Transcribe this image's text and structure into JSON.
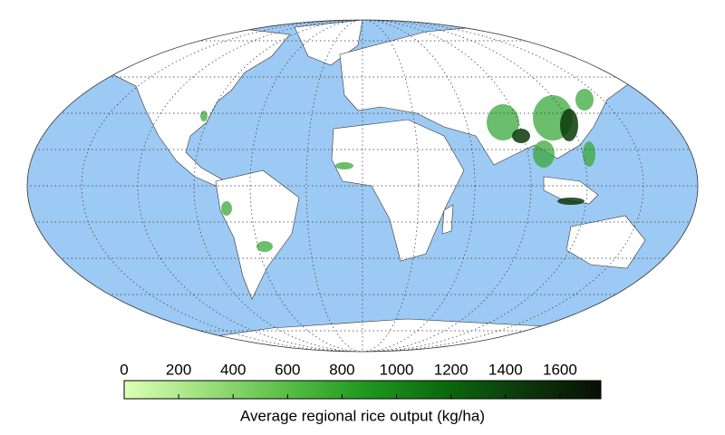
{
  "chart_data": {
    "type": "choropleth-map",
    "colorbar": {
      "label": "Average regional rice output (kg/ha)",
      "lim": [
        0,
        1750
      ],
      "ticks": [
        0,
        200,
        400,
        600,
        800,
        1000,
        1200,
        1400,
        1600
      ],
      "colormap": [
        "#dcffb4",
        "#9ee07e",
        "#5cbf4a",
        "#1f9a1f",
        "#0d6a0d",
        "#0b3a0b",
        "#0a0f04"
      ]
    }
  }
}
